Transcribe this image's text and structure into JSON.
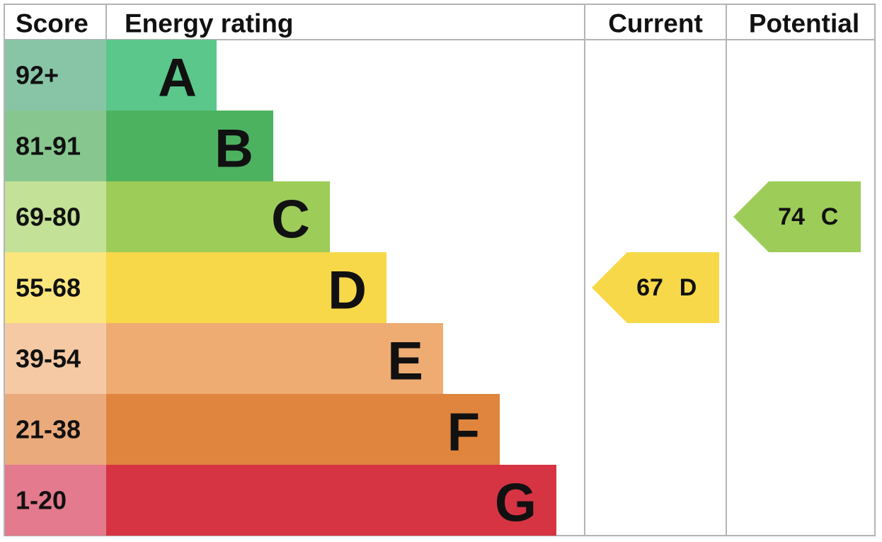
{
  "header": {
    "score": "Score",
    "rating": "Energy rating",
    "current": "Current",
    "potential": "Potential"
  },
  "bands": [
    {
      "range": "92+",
      "letter": "A",
      "color": "#5bc78b",
      "score_color": "#88c5a7"
    },
    {
      "range": "81-91",
      "letter": "B",
      "color": "#4db260",
      "score_color": "#87c78f"
    },
    {
      "range": "69-80",
      "letter": "C",
      "color": "#9dcc59",
      "score_color": "#c3e197"
    },
    {
      "range": "55-68",
      "letter": "D",
      "color": "#f7d849",
      "score_color": "#fbe67d"
    },
    {
      "range": "39-54",
      "letter": "E",
      "color": "#eeac72",
      "score_color": "#f5c9a3"
    },
    {
      "range": "21-38",
      "letter": "F",
      "color": "#e0853d",
      "score_color": "#ebaa7b"
    },
    {
      "range": "1-20",
      "letter": "G",
      "color": "#d63442",
      "score_color": "#e37a8d"
    }
  ],
  "current": {
    "score": 67,
    "band": "D"
  },
  "potential": {
    "score": 74,
    "band": "C"
  }
}
